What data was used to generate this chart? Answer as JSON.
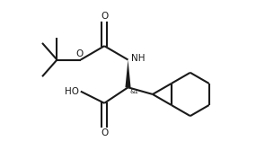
{
  "bg_color": "#ffffff",
  "line_color": "#1a1a1a",
  "line_width": 1.5,
  "font_size_label": 7.5,
  "font_size_stereo": 5.0,
  "figsize": [
    2.85,
    1.77
  ],
  "dpi": 100,
  "xlim": [
    0.0,
    1.0
  ],
  "ylim": [
    0.15,
    0.95
  ]
}
